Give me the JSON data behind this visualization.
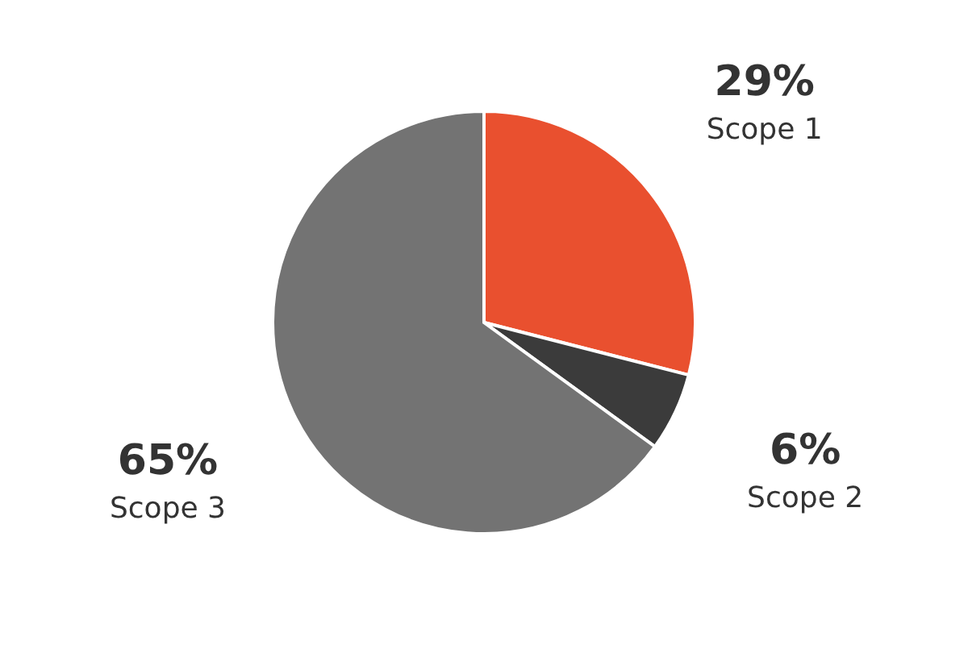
{
  "chart_data": {
    "type": "pie",
    "categories": [
      "Scope 1",
      "Scope 2",
      "Scope 3"
    ],
    "values": [
      29,
      6,
      65
    ],
    "colors": [
      "#e9502f",
      "#3b3b3b",
      "#737373"
    ],
    "value_labels": [
      "29%",
      "6%",
      "65%"
    ]
  }
}
